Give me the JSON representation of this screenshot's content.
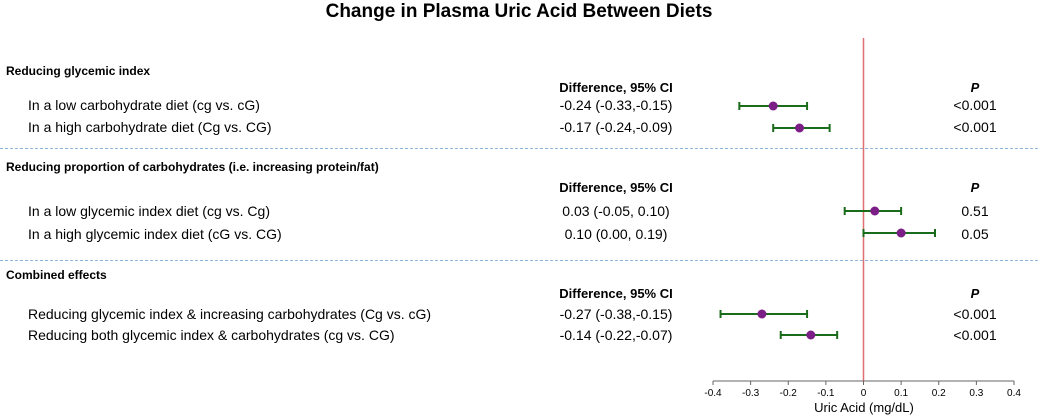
{
  "title": "Change in Plasma Uric Acid Between Diets",
  "sections": [
    {
      "label": "Reducing glycemic index",
      "ci_header": "Difference, 95% CI",
      "p_header": "P",
      "rows": [
        {
          "label": "In a low carbohydrate diet (cg vs. cG)",
          "ci_text": "-0.24 (-0.33,-0.15)",
          "p": "<0.001"
        },
        {
          "label": "In a high carbohydrate diet (Cg vs. CG)",
          "ci_text": "-0.17 (-0.24,-0.09)",
          "p": "<0.001"
        }
      ]
    },
    {
      "label": "Reducing proportion of carbohydrates (i.e. increasing protein/fat)",
      "ci_header": "Difference, 95% CI",
      "p_header": "P",
      "rows": [
        {
          "label": "In a low glycemic index diet (cg vs. Cg)",
          "ci_text": "0.03 (-0.05, 0.10)",
          "p": "0.51"
        },
        {
          "label": "In a high glycemic index diet (cG vs. CG)",
          "ci_text": "0.10 (0.00, 0.19)",
          "p": "0.05"
        }
      ]
    },
    {
      "label": "Combined effects",
      "ci_header": "Difference, 95% CI",
      "p_header": "P",
      "rows": [
        {
          "label": "Reducing glycemic index & increasing carbohydrates (Cg vs. cG)",
          "ci_text": "-0.27 (-0.38,-0.15)",
          "p": "<0.001"
        },
        {
          "label": "Reducing both glycemic index & carbohydrates (cg vs. CG)",
          "ci_text": "-0.14 (-0.22,-0.07)",
          "p": "<0.001"
        }
      ]
    }
  ],
  "chart_data": {
    "type": "scatter",
    "title": "Change in Plasma Uric Acid Between Diets",
    "xlabel": "Uric Acid (mg/dL)",
    "xlim": [
      -0.4,
      0.4
    ],
    "xticks": [
      "-0.4",
      "-0.3",
      "-0.2",
      "-0.1",
      "0",
      "0.1",
      "0.2",
      "0.3",
      "0.4"
    ],
    "reference_line": 0,
    "colors": {
      "point": "#7b1f86",
      "ci": "#1a6b1a",
      "reference": "#e07070"
    },
    "series": [
      {
        "estimate": -0.24,
        "lower": -0.33,
        "upper": -0.15
      },
      {
        "estimate": -0.17,
        "lower": -0.24,
        "upper": -0.09
      },
      {
        "estimate": 0.03,
        "lower": -0.05,
        "upper": 0.1
      },
      {
        "estimate": 0.1,
        "lower": 0.0,
        "upper": 0.19
      },
      {
        "estimate": -0.27,
        "lower": -0.38,
        "upper": -0.15
      },
      {
        "estimate": -0.14,
        "lower": -0.22,
        "upper": -0.07
      }
    ]
  }
}
